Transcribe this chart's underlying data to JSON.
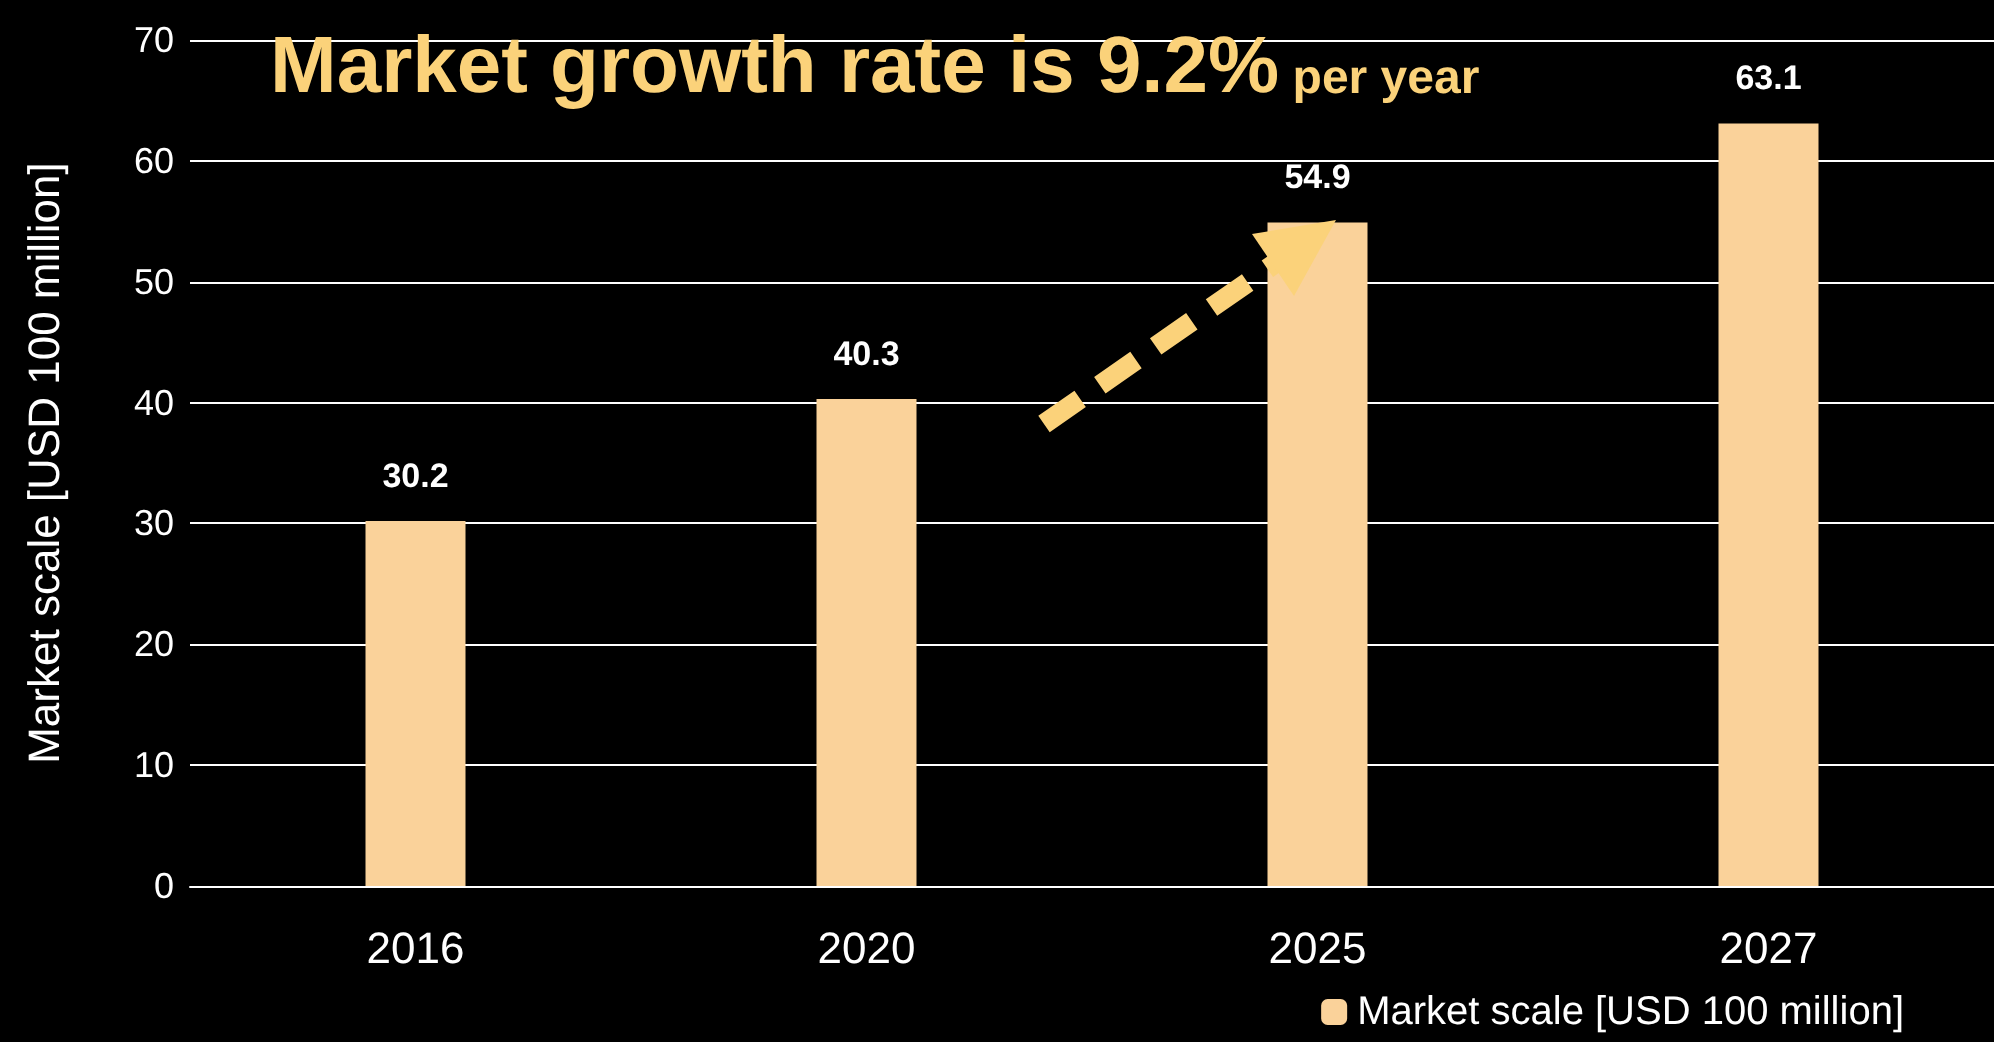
{
  "chart_data": {
    "type": "bar",
    "title": "Market growth rate is 9.2% per year",
    "ylabel": "Market scale [USD 100 million]",
    "categories": [
      "2016",
      "2020",
      "2025",
      "2027"
    ],
    "series": [
      {
        "name": "Market scale [USD 100 million]",
        "color": "#fad29a",
        "values": [
          30.2,
          40.3,
          54.9,
          63.1
        ]
      }
    ],
    "ylim": [
      0,
      70
    ],
    "yticks": [
      0,
      10,
      20,
      30,
      40,
      50,
      60,
      70
    ],
    "grid": "y",
    "legend": "bottom right",
    "data_labels": true
  }
}
